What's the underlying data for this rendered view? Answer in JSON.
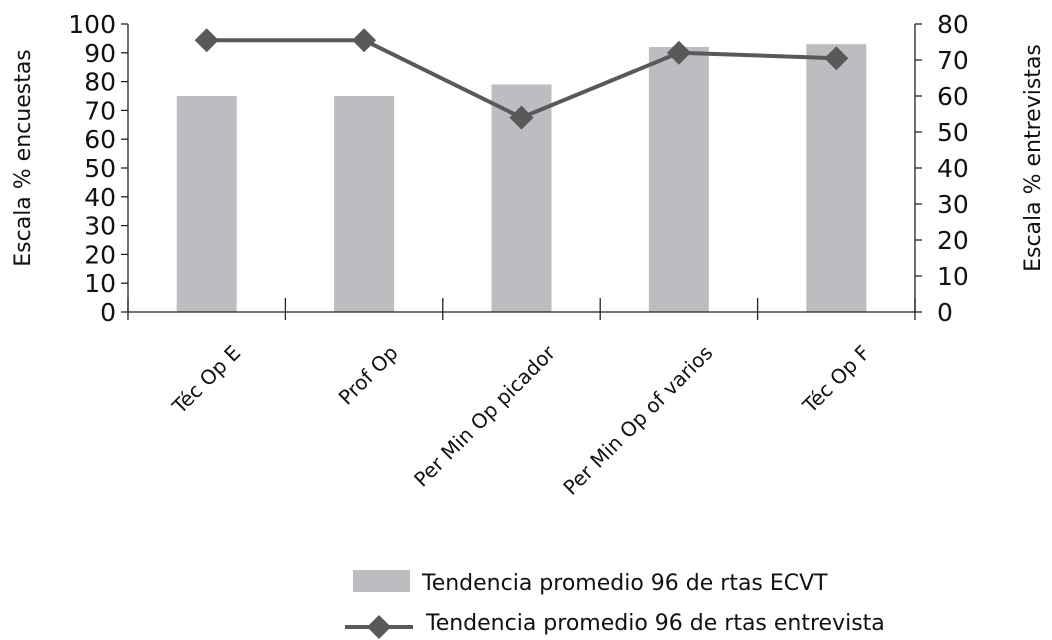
{
  "chart_data": {
    "type": "bar",
    "categories": [
      "Téc Op E",
      "Prof Op",
      "Per Min Op picador",
      "Per Min Op of varios",
      "Téc Op F"
    ],
    "series": [
      {
        "name": "Tendencia promedio 96 de rtas ECVT",
        "type": "bar",
        "axis": "left",
        "values": [
          75,
          75,
          79,
          92,
          93
        ],
        "color": "#bcbdc0"
      },
      {
        "name": "Tendencia promedio 96 de rtas entrevista",
        "type": "line",
        "axis": "right",
        "values": [
          75.5,
          75.5,
          54,
          72,
          70.5
        ],
        "color": "#595959",
        "marker": "diamond"
      }
    ],
    "y_left": {
      "label": "Escala % encuestas",
      "ylim": [
        0,
        100
      ],
      "ticks": [
        "0",
        "10",
        "20",
        "30",
        "40",
        "50",
        "60",
        "70",
        "80",
        "90",
        "100"
      ]
    },
    "y_right": {
      "label": "Escala % entrevistas",
      "ylim": [
        0,
        80
      ],
      "ticks": [
        "0",
        "10",
        "20",
        "30",
        "40",
        "50",
        "60",
        "70",
        "80"
      ]
    },
    "grid": false,
    "legend_placement": "bottom"
  }
}
